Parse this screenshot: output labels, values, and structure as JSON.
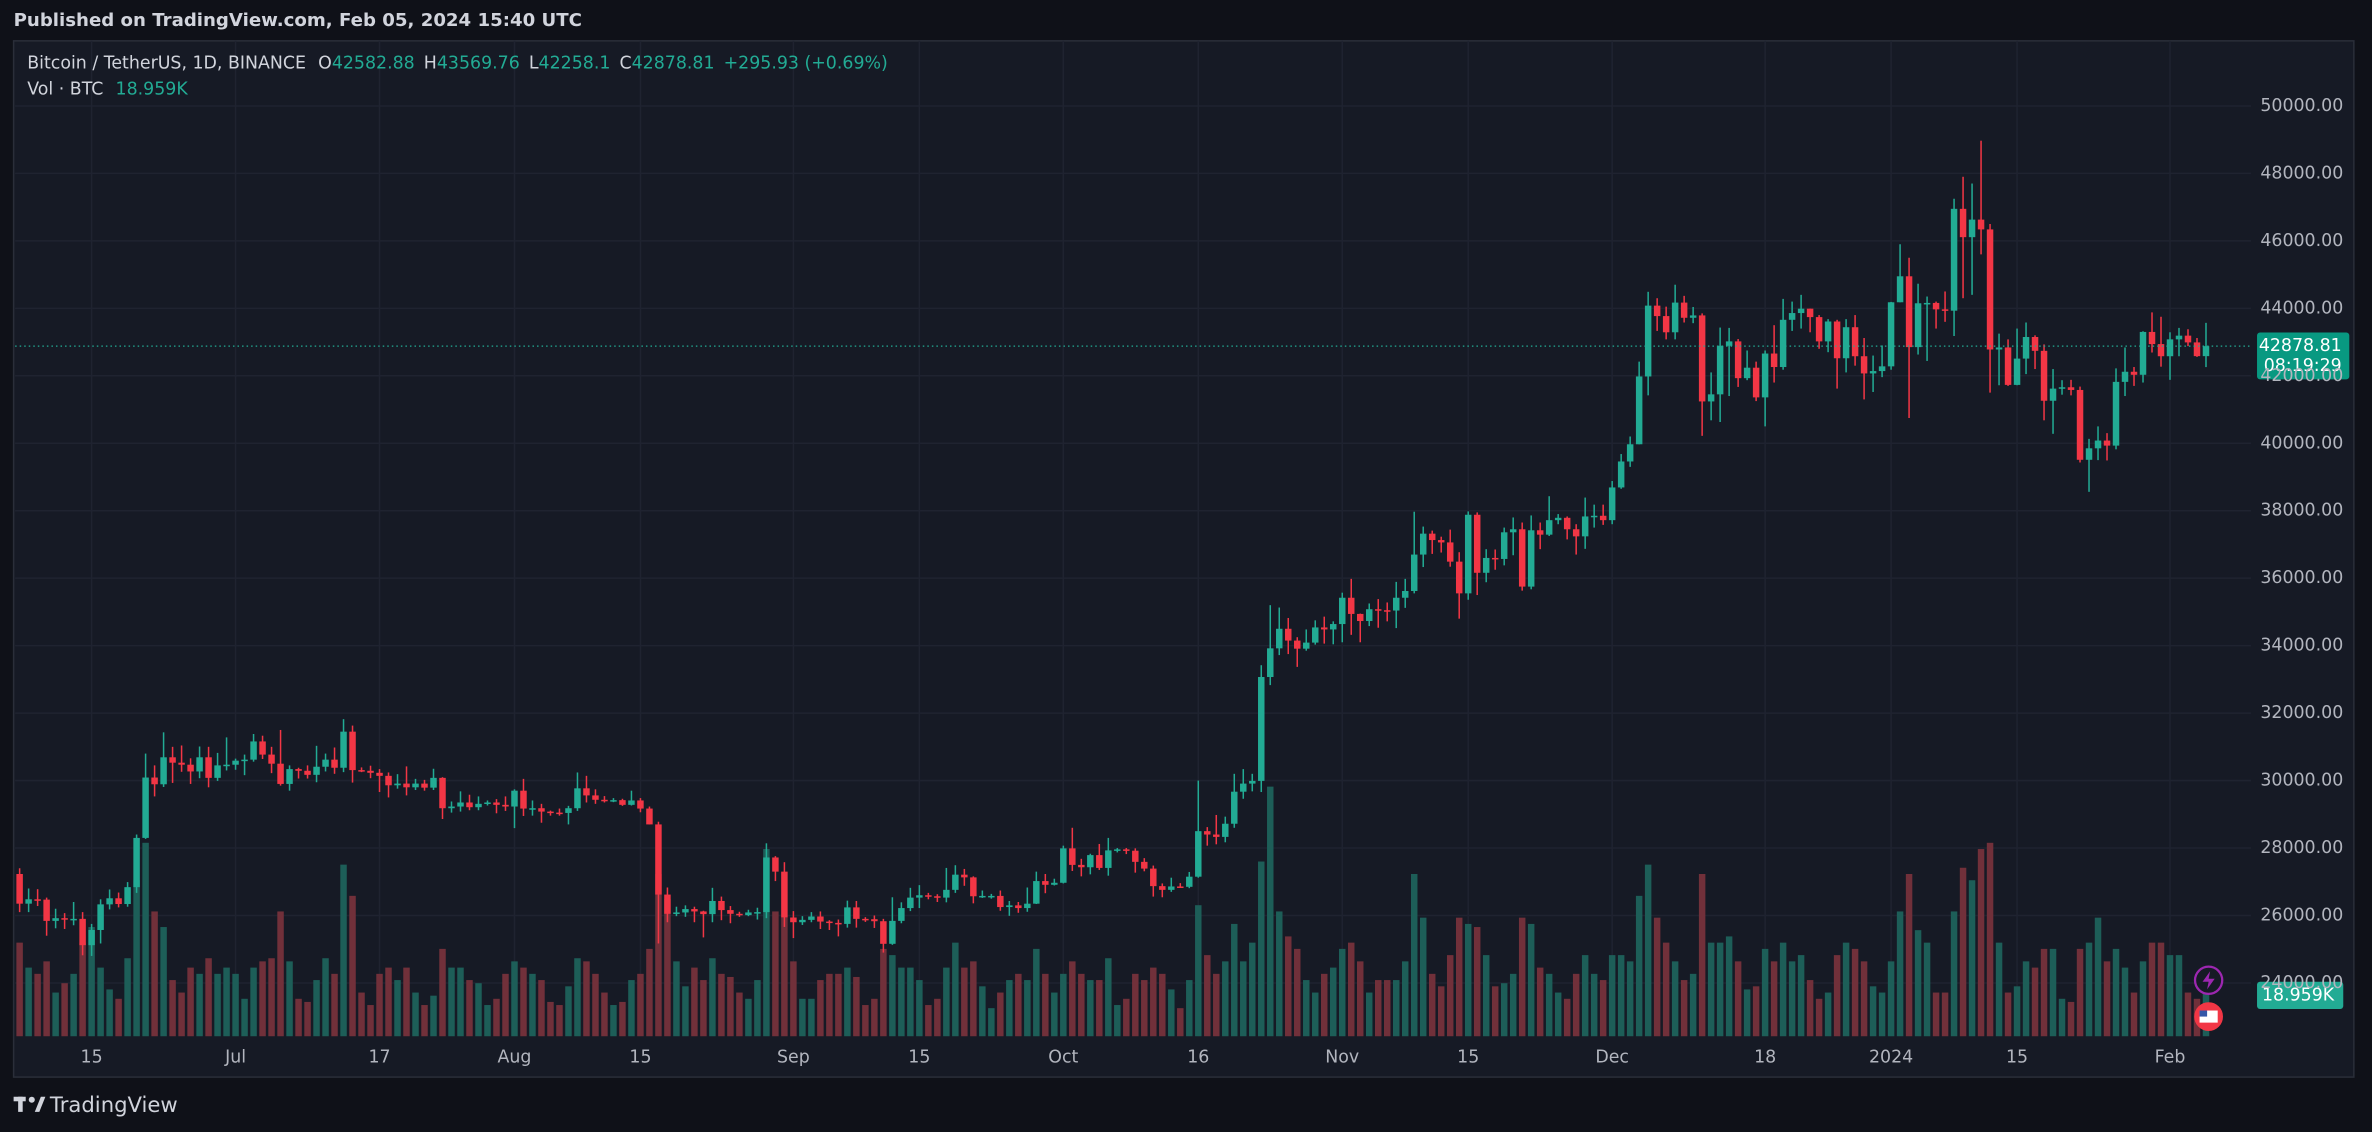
{
  "header": "Published on TradingView.com, Feb 05, 2024 15:40 UTC",
  "footer": "TradingView",
  "chart_data": {
    "type": "candlestick",
    "title": "Bitcoin / TetherUS, 1D, BINANCE",
    "open": [
      27230,
      26350,
      26480,
      26470,
      25840,
      25920,
      25900,
      25900,
      25120,
      25570,
      26330,
      26510,
      26340,
      26840,
      28300,
      30090,
      29890,
      30690,
      30530,
      30470,
      30270,
      30690,
      30080,
      30450,
      30470,
      30590,
      30620,
      31160,
      30770,
      30500,
      29900,
      30340,
      30290,
      30170,
      30410,
      30620,
      30380,
      31450,
      30310,
      30290,
      30230,
      30140,
      29860,
      29910,
      29800,
      29910,
      29790,
      30080,
      29180,
      29230,
      29350,
      29210,
      29310,
      29350,
      29280,
      29230,
      29700,
      29170,
      29180,
      29080,
      29050,
      29040,
      29180,
      29770,
      29560,
      29430,
      29400,
      29420,
      29280,
      29410,
      29170,
      28700,
      26620,
      26050,
      26090,
      26190,
      26120,
      26040,
      26430,
      26160,
      26050,
      26010,
      26090,
      26100,
      27720,
      27300,
      25940,
      25800,
      25870,
      25970,
      25820,
      25780,
      25750,
      26240,
      25900,
      25890,
      25830,
      25160,
      25840,
      26220,
      26530,
      26600,
      26570,
      26530,
      26760,
      27210,
      27130,
      26570,
      26580,
      26580,
      26250,
      26300,
      26220,
      26350,
      27020,
      26910,
      26970,
      27990,
      27500,
      27430,
      27790,
      27410,
      27930,
      27960,
      27920,
      27590,
      27390,
      26870,
      26760,
      26860,
      26850,
      27150,
      28500,
      28400,
      28330,
      28720,
      29670,
      29910,
      29990,
      33070,
      33920,
      34500,
      34150,
      33910,
      34090,
      34540,
      34480,
      34640,
      35420,
      34940,
      34730,
      35080,
      35050,
      35040,
      35420,
      35620,
      36700,
      37320,
      37130,
      37060,
      36490,
      35550,
      37880,
      36160,
      36600,
      36570,
      37360,
      37450,
      35750,
      37420,
      37290,
      37720,
      37790,
      37450,
      37240,
      37830,
      37850,
      37720,
      38690,
      39460,
      39970,
      41980,
      44080,
      43770,
      43290,
      44170,
      43720,
      43790,
      41240,
      41450,
      42890,
      43020,
      41930,
      42240,
      41360,
      42660,
      42260,
      43660,
      43860,
      43990,
      43740,
      43020,
      43610,
      42520,
      43440,
      42580,
      42070,
      42140,
      42280,
      44180,
      44950,
      42850,
      44150,
      44160,
      43970,
      43930,
      46950,
      46110,
      46630,
      46340,
      42780,
      42840,
      41730,
      42510,
      43150,
      42740,
      41260,
      41620,
      41660,
      41580,
      39510,
      39850,
      40080,
      39930,
      41820,
      42120,
      42030,
      43300,
      42940,
      42580,
      43080,
      43190,
      42990,
      42582.88
    ],
    "high": [
      27400,
      26800,
      26780,
      26530,
      26200,
      26070,
      26400,
      26100,
      25750,
      26480,
      26770,
      26680,
      26990,
      28400,
      30800,
      30450,
      31430,
      31000,
      31040,
      30660,
      31010,
      31000,
      30820,
      31280,
      30650,
      30770,
      31380,
      31330,
      31000,
      31500,
      30450,
      30380,
      30450,
      31030,
      30800,
      30980,
      31820,
      31630,
      30390,
      30440,
      30340,
      30240,
      30190,
      30420,
      30050,
      30020,
      30350,
      30100,
      29380,
      29680,
      29580,
      29530,
      29410,
      29450,
      29530,
      29740,
      30050,
      29410,
      29310,
      29110,
      29170,
      29250,
      30240,
      30140,
      29740,
      29540,
      29480,
      29460,
      29700,
      29480,
      29230,
      28780,
      26830,
      26260,
      26300,
      26260,
      26140,
      26820,
      26560,
      26280,
      26110,
      26170,
      26230,
      28140,
      27760,
      27580,
      26130,
      25980,
      26100,
      26120,
      25860,
      25880,
      26440,
      26430,
      25950,
      26000,
      25900,
      26540,
      26390,
      26820,
      26900,
      26670,
      26630,
      27410,
      27490,
      27380,
      27160,
      26740,
      26640,
      26740,
      26430,
      26400,
      26830,
      27300,
      27230,
      27090,
      28070,
      28600,
      27680,
      27830,
      28120,
      28300,
      28000,
      28000,
      27990,
      27700,
      27480,
      26950,
      27120,
      26960,
      27290,
      30000,
      28620,
      28980,
      28930,
      30200,
      30340,
      30200,
      33420,
      35200,
      35130,
      34820,
      34250,
      34480,
      34750,
      34860,
      34720,
      35570,
      35980,
      34950,
      35250,
      35380,
      35280,
      35890,
      35980,
      37970,
      37530,
      37410,
      37230,
      37440,
      36770,
      37980,
      37950,
      36860,
      36850,
      37500,
      37800,
      37650,
      37860,
      37650,
      38430,
      37900,
      37830,
      37600,
      38390,
      38180,
      38180,
      38880,
      39680,
      40200,
      42420,
      44490,
      44300,
      44050,
      44700,
      44370,
      44040,
      43850,
      42100,
      43430,
      43420,
      43090,
      42750,
      42420,
      42750,
      43500,
      44280,
      44200,
      44400,
      43990,
      43800,
      43680,
      43660,
      43680,
      43800,
      43120,
      42600,
      42900,
      44190,
      45900,
      45500,
      44730,
      44350,
      44200,
      44500,
      47250,
      47900,
      47700,
      48970,
      46500,
      43250,
      43080,
      43400,
      43580,
      43200,
      42930,
      42200,
      41870,
      41880,
      41680,
      40130,
      40500,
      40300,
      42220,
      42840,
      42260,
      43320,
      43880,
      43750,
      43290,
      43420,
      43380,
      43120,
      43569.76
    ],
    "low": [
      26100,
      26100,
      26280,
      25400,
      25620,
      25600,
      25710,
      24820,
      24800,
      25170,
      26180,
      26240,
      26260,
      26670,
      28270,
      29530,
      29810,
      29930,
      30260,
      29900,
      30070,
      29800,
      29990,
      30300,
      30320,
      30160,
      30560,
      30640,
      30220,
      29850,
      29700,
      30060,
      30060,
      29950,
      30270,
      30200,
      30250,
      29940,
      30250,
      30070,
      29660,
      29500,
      29760,
      29560,
      29720,
      29700,
      29720,
      28860,
      29050,
      29080,
      29120,
      29120,
      29260,
      29030,
      29100,
      28590,
      28950,
      28960,
      28750,
      28960,
      28960,
      28700,
      29100,
      29350,
      29310,
      29350,
      29360,
      29250,
      29260,
      29060,
      28700,
      25170,
      25800,
      25980,
      25960,
      25800,
      25350,
      25800,
      25860,
      25770,
      25960,
      25980,
      25880,
      25920,
      27020,
      25660,
      25330,
      25720,
      25800,
      25600,
      25570,
      25380,
      25640,
      25640,
      25810,
      25630,
      24900,
      25130,
      25770,
      26130,
      26220,
      26480,
      26400,
      26390,
      26670,
      26880,
      26360,
      26520,
      26500,
      26140,
      25990,
      26080,
      26110,
      26340,
      26660,
      26890,
      26950,
      27320,
      27160,
      27220,
      27350,
      27180,
      27870,
      27820,
      27270,
      27310,
      26560,
      26540,
      26700,
      26820,
      26810,
      27120,
      28070,
      28110,
      28170,
      28600,
      29460,
      29680,
      29660,
      32830,
      33720,
      33750,
      33370,
      33850,
      34030,
      34060,
      34040,
      34100,
      34320,
      34100,
      34580,
      34530,
      34720,
      34520,
      35120,
      35550,
      36330,
      36720,
      36760,
      36340,
      34800,
      35360,
      35500,
      35880,
      36250,
      36380,
      36680,
      35630,
      35670,
      36860,
      37250,
      37600,
      37150,
      36700,
      36870,
      37500,
      37580,
      37600,
      38650,
      39300,
      39970,
      41420,
      43330,
      43080,
      43080,
      43580,
      43560,
      40220,
      40680,
      40630,
      41400,
      41670,
      41870,
      41250,
      40500,
      41800,
      42180,
      43330,
      43400,
      43290,
      42800,
      42700,
      41620,
      42100,
      42300,
      41300,
      41520,
      41960,
      42180,
      44180,
      40750,
      42630,
      42440,
      43400,
      43600,
      43180,
      44300,
      44400,
      45600,
      41500,
      41720,
      41700,
      41720,
      42050,
      42200,
      40680,
      40280,
      41440,
      41420,
      39430,
      38560,
      39500,
      39490,
      39820,
      41400,
      41700,
      41800,
      42690,
      42270,
      41880,
      42580,
      42880,
      42560,
      42258.1
    ],
    "close": [
      26350,
      26480,
      26470,
      25840,
      25920,
      25900,
      25900,
      25120,
      25570,
      26330,
      26510,
      26340,
      26840,
      28300,
      30090,
      29890,
      30690,
      30530,
      30470,
      30270,
      30690,
      30080,
      30450,
      30470,
      30590,
      30620,
      31160,
      30770,
      30500,
      29900,
      30340,
      30290,
      30170,
      30410,
      30620,
      30380,
      31450,
      30310,
      30290,
      30230,
      30140,
      29860,
      29910,
      29800,
      29910,
      29790,
      30080,
      29180,
      29230,
      29350,
      29210,
      29310,
      29350,
      29280,
      29230,
      29700,
      29170,
      29180,
      29080,
      29050,
      29040,
      29180,
      29770,
      29560,
      29430,
      29400,
      29420,
      29280,
      29410,
      29170,
      28700,
      26620,
      26050,
      26090,
      26190,
      26120,
      26040,
      26430,
      26160,
      26050,
      26010,
      26090,
      26100,
      27720,
      27300,
      25940,
      25800,
      25870,
      25970,
      25820,
      25780,
      25750,
      26240,
      25900,
      25890,
      25830,
      25160,
      25840,
      26220,
      26530,
      26600,
      26570,
      26530,
      26760,
      27210,
      27130,
      26570,
      26580,
      26580,
      26250,
      26300,
      26220,
      26350,
      27020,
      26910,
      26970,
      27990,
      27500,
      27430,
      27790,
      27410,
      27930,
      27960,
      27920,
      27590,
      27390,
      26870,
      26760,
      26860,
      26850,
      27150,
      28500,
      28400,
      28330,
      28720,
      29670,
      29910,
      29990,
      33070,
      33920,
      34500,
      34150,
      33910,
      34090,
      34540,
      34480,
      34640,
      35420,
      34940,
      34730,
      35080,
      35050,
      35040,
      35420,
      35620,
      36700,
      37320,
      37130,
      37060,
      36490,
      35550,
      37880,
      36160,
      36600,
      36570,
      37360,
      37450,
      35750,
      37420,
      37290,
      37720,
      37790,
      37450,
      37240,
      37830,
      37850,
      37720,
      38690,
      39460,
      39970,
      41980,
      44080,
      43770,
      43290,
      44170,
      43720,
      43790,
      41240,
      41450,
      42890,
      43020,
      41930,
      42240,
      41360,
      42660,
      42260,
      43660,
      43860,
      43990,
      43740,
      43020,
      43610,
      42520,
      43440,
      42580,
      42070,
      42140,
      42280,
      44180,
      44950,
      42850,
      44150,
      44160,
      43970,
      43930,
      46950,
      46110,
      46630,
      46340,
      42780,
      42840,
      41730,
      42510,
      43150,
      42740,
      41260,
      41620,
      41660,
      41580,
      39510,
      39850,
      40080,
      39930,
      41820,
      42120,
      42030,
      43300,
      42940,
      42580,
      43080,
      43190,
      42990,
      42582.88,
      42878.81
    ],
    "volume": [
      30,
      22,
      20,
      24,
      14,
      17,
      20,
      30,
      35,
      22,
      15,
      12,
      25,
      50,
      62,
      40,
      35,
      18,
      14,
      22,
      20,
      25,
      20,
      22,
      20,
      12,
      22,
      24,
      25,
      40,
      24,
      12,
      11,
      18,
      25,
      20,
      55,
      45,
      14,
      10,
      20,
      22,
      18,
      22,
      14,
      10,
      13,
      28,
      22,
      22,
      18,
      17,
      10,
      12,
      20,
      24,
      22,
      20,
      18,
      11,
      10,
      16,
      25,
      24,
      20,
      14,
      10,
      11,
      18,
      20,
      28,
      52,
      44,
      24,
      16,
      22,
      18,
      25,
      20,
      19,
      14,
      12,
      18,
      60,
      40,
      38,
      24,
      12,
      12,
      18,
      20,
      20,
      22,
      19,
      10,
      12,
      28,
      26,
      22,
      22,
      18,
      10,
      12,
      22,
      30,
      22,
      24,
      16,
      9,
      14,
      18,
      20,
      18,
      28,
      20,
      14,
      20,
      24,
      20,
      18,
      18,
      25,
      10,
      12,
      20,
      18,
      22,
      20,
      15,
      9,
      18,
      42,
      26,
      20,
      24,
      36,
      24,
      30,
      56,
      80,
      40,
      32,
      28,
      18,
      14,
      20,
      22,
      28,
      30,
      24,
      14,
      18,
      18,
      18,
      24,
      52,
      38,
      20,
      16,
      26,
      38,
      36,
      35,
      26,
      16,
      17,
      20,
      38,
      36,
      22,
      20,
      14,
      12,
      20,
      26,
      20,
      18,
      26,
      26,
      24,
      45,
      55,
      38,
      30,
      24,
      18,
      20,
      52,
      30,
      30,
      32,
      24,
      15,
      16,
      28,
      24,
      30,
      24,
      26,
      18,
      12,
      14,
      26,
      30,
      28,
      24,
      16,
      14,
      24,
      40,
      52,
      34,
      30,
      14,
      14,
      40,
      54,
      50,
      60,
      62,
      30,
      14,
      16,
      24,
      22,
      28,
      28,
      12,
      11,
      28,
      30,
      38,
      24,
      28,
      22,
      14,
      24,
      30,
      30,
      26,
      26,
      14,
      12,
      18.959
    ],
    "xlim": [
      -0.5,
      248
    ],
    "xticks": [
      {
        "value": 8,
        "label": "15"
      },
      {
        "value": 24,
        "label": "Jul"
      },
      {
        "value": 40,
        "label": "17"
      },
      {
        "value": 55,
        "label": "Aug"
      },
      {
        "value": 69,
        "label": "15"
      },
      {
        "value": 86,
        "label": "Sep"
      },
      {
        "value": 100,
        "label": "15"
      },
      {
        "value": 116,
        "label": "Oct"
      },
      {
        "value": 131,
        "label": "16"
      },
      {
        "value": 147,
        "label": "Nov"
      },
      {
        "value": 161,
        "label": "15"
      },
      {
        "value": 177,
        "label": "Dec"
      },
      {
        "value": 194,
        "label": "18"
      },
      {
        "value": 208,
        "label": "2024"
      },
      {
        "value": 222,
        "label": "15"
      },
      {
        "value": 239,
        "label": "Feb"
      }
    ],
    "ylim": [
      22420,
      51930
    ],
    "yticks": [
      {
        "value": 24000,
        "label": "24000.00"
      },
      {
        "value": 26000,
        "label": "26000.00"
      },
      {
        "value": 28000,
        "label": "28000.00"
      },
      {
        "value": 30000,
        "label": "30000.00"
      },
      {
        "value": 32000,
        "label": "32000.00"
      },
      {
        "value": 34000,
        "label": "34000.00"
      },
      {
        "value": 36000,
        "label": "36000.00"
      },
      {
        "value": 38000,
        "label": "38000.00"
      },
      {
        "value": 40000,
        "label": "40000.00"
      },
      {
        "value": 42000,
        "label": "42000.00"
      },
      {
        "value": 44000,
        "label": "44000.00"
      },
      {
        "value": 46000,
        "label": "46000.00"
      },
      {
        "value": 48000,
        "label": "48000.00"
      },
      {
        "value": 50000,
        "label": "50000.00"
      }
    ],
    "grid": true,
    "up_color": "#22ab94",
    "down_color": "#f23645",
    "volume_up_color": "#1d5e58",
    "volume_down_color": "#71303a",
    "legend": {
      "ohlc": [
        {
          "key": "O",
          "value": 42582.88
        },
        {
          "key": "H",
          "value": 43569.76
        },
        {
          "key": "L",
          "value": 42258.1
        },
        {
          "key": "C",
          "value": 42878.81
        }
      ],
      "change": "+295.93 (+0.69%)",
      "volume_title": "Vol · BTC",
      "volume_value": "18.959K"
    },
    "last_price": 42878.81,
    "countdown": "08:19:29",
    "last_volume_label": "18.959K"
  }
}
